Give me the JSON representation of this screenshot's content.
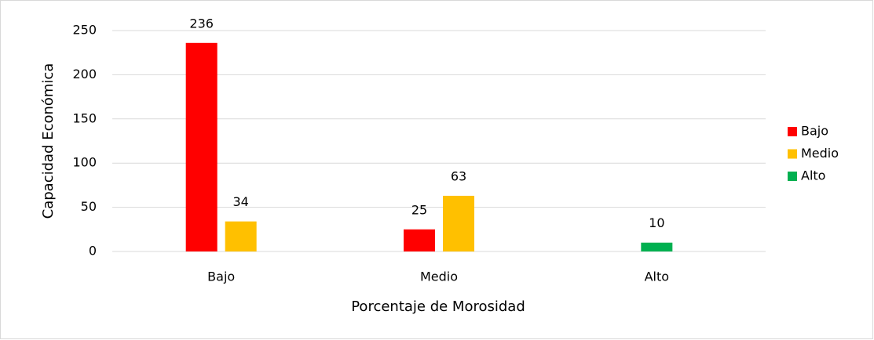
{
  "chart_data": {
    "type": "bar",
    "categories": [
      "Bajo",
      "Medio",
      "Alto"
    ],
    "series": [
      {
        "name": "Bajo",
        "color": "#ff0000",
        "values": [
          236,
          25,
          null
        ]
      },
      {
        "name": "Medio",
        "color": "#ffc000",
        "values": [
          34,
          63,
          null
        ]
      },
      {
        "name": "Alto",
        "color": "#00b050",
        "values": [
          null,
          null,
          10
        ]
      }
    ],
    "xlabel": "Porcentaje de Morosidad",
    "ylabel": "Capacidad Económica",
    "ylim": [
      0,
      250
    ],
    "yticks": [
      0,
      50,
      100,
      150,
      200,
      250
    ],
    "grid": true,
    "legend": "right"
  }
}
